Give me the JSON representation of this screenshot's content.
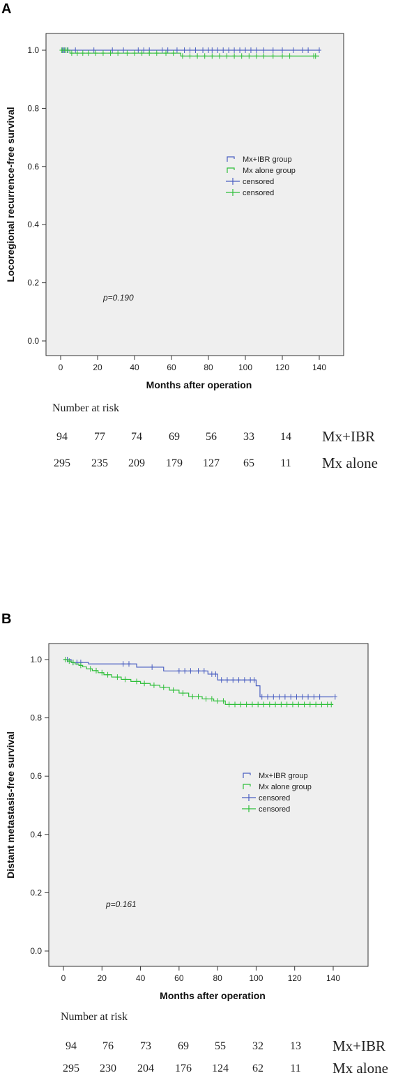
{
  "chart_data": [
    {
      "panel": "A",
      "type": "line",
      "title": "",
      "xlabel": "Months after operation",
      "ylabel": "Locoregional recurrence-free survival",
      "xlim": [
        0,
        140
      ],
      "ylim": [
        0.0,
        1.0
      ],
      "xticks": [
        "0",
        "20",
        "40",
        "60",
        "80",
        "100",
        "120",
        "140"
      ],
      "yticks": [
        "0.0",
        "0.2",
        "0.4",
        "0.6",
        "0.8",
        "1.0"
      ],
      "annotation": "p=0.190",
      "legend_position": "center-right",
      "legend": [
        "Mx+IBR group",
        "Mx alone group",
        "censored",
        "censored"
      ],
      "series": [
        {
          "name": "Mx+IBR group",
          "color": "#4a5fc1",
          "steps": [
            [
              0,
              1.0
            ],
            [
              140,
              1.0
            ]
          ],
          "censored": [
            [
              1,
              1.0
            ],
            [
              2,
              1.0
            ],
            [
              4,
              1.0
            ],
            [
              8,
              1.0
            ],
            [
              18,
              1.0
            ],
            [
              28,
              1.0
            ],
            [
              34,
              1.0
            ],
            [
              42,
              1.0
            ],
            [
              45,
              1.0
            ],
            [
              48,
              1.0
            ],
            [
              55,
              1.0
            ],
            [
              58,
              1.0
            ],
            [
              63,
              1.0
            ],
            [
              67,
              1.0
            ],
            [
              70,
              1.0
            ],
            [
              73,
              1.0
            ],
            [
              77,
              1.0
            ],
            [
              80,
              1.0
            ],
            [
              82,
              1.0
            ],
            [
              85,
              1.0
            ],
            [
              88,
              1.0
            ],
            [
              91,
              1.0
            ],
            [
              94,
              1.0
            ],
            [
              97,
              1.0
            ],
            [
              100,
              1.0
            ],
            [
              103,
              1.0
            ],
            [
              106,
              1.0
            ],
            [
              110,
              1.0
            ],
            [
              115,
              1.0
            ],
            [
              120,
              1.0
            ],
            [
              126,
              1.0
            ],
            [
              131,
              1.0
            ],
            [
              134,
              1.0
            ],
            [
              140,
              1.0
            ]
          ]
        },
        {
          "name": "Mx alone group",
          "color": "#2fbf3a",
          "steps": [
            [
              0,
              1.0
            ],
            [
              5,
              0.99
            ],
            [
              65,
              0.98
            ],
            [
              140,
              0.98
            ]
          ],
          "censored": [
            [
              0.5,
              1.0
            ],
            [
              1.5,
              1.0
            ],
            [
              2.5,
              1.0
            ],
            [
              3.5,
              1.0
            ],
            [
              6,
              0.99
            ],
            [
              9,
              0.99
            ],
            [
              12,
              0.99
            ],
            [
              15,
              0.99
            ],
            [
              19,
              0.99
            ],
            [
              23,
              0.99
            ],
            [
              27,
              0.99
            ],
            [
              31,
              0.99
            ],
            [
              36,
              0.99
            ],
            [
              40,
              0.99
            ],
            [
              44,
              0.99
            ],
            [
              48,
              0.99
            ],
            [
              52,
              0.99
            ],
            [
              57,
              0.99
            ],
            [
              61,
              0.99
            ],
            [
              66,
              0.98
            ],
            [
              70,
              0.98
            ],
            [
              74,
              0.98
            ],
            [
              78,
              0.98
            ],
            [
              82,
              0.98
            ],
            [
              86,
              0.98
            ],
            [
              90,
              0.98
            ],
            [
              94,
              0.98
            ],
            [
              98,
              0.98
            ],
            [
              102,
              0.98
            ],
            [
              106,
              0.98
            ],
            [
              110,
              0.98
            ],
            [
              115,
              0.98
            ],
            [
              120,
              0.98
            ],
            [
              124,
              0.98
            ],
            [
              137,
              0.98
            ],
            [
              138,
              0.98
            ]
          ]
        }
      ],
      "number_at_risk": {
        "title": "Number at risk",
        "rows": [
          {
            "label": "Mx+IBR",
            "values": [
              "94",
              "77",
              "74",
              "69",
              "56",
              "33",
              "14"
            ]
          },
          {
            "label": "Mx alone",
            "values": [
              "295",
              "235",
              "209",
              "179",
              "127",
              "65",
              "11"
            ]
          }
        ]
      }
    },
    {
      "panel": "B",
      "type": "line",
      "title": "",
      "xlabel": "Months after operation",
      "ylabel": "Distant metastasis-free survival",
      "xlim": [
        0,
        140
      ],
      "ylim": [
        0.0,
        1.0
      ],
      "xticks": [
        "0",
        "20",
        "40",
        "60",
        "80",
        "100",
        "120",
        "140"
      ],
      "yticks": [
        "0.0",
        "0.2",
        "0.4",
        "0.6",
        "0.8",
        "1.0"
      ],
      "annotation": "p=0.161",
      "legend_position": "center-right",
      "legend": [
        "Mx+IBR group",
        "Mx alone group",
        "censored",
        "censored"
      ],
      "series": [
        {
          "name": "Mx+IBR group",
          "color": "#4a5fc1",
          "steps": [
            [
              0,
              1.0
            ],
            [
              4,
              0.99
            ],
            [
              13,
              0.985
            ],
            [
              38,
              0.974
            ],
            [
              52,
              0.961
            ],
            [
              75,
              0.95
            ],
            [
              80,
              0.93
            ],
            [
              100,
              0.91
            ],
            [
              102,
              0.872
            ],
            [
              140,
              0.872
            ]
          ],
          "censored": [
            [
              2,
              1.0
            ],
            [
              5,
              0.99
            ],
            [
              7,
              0.99
            ],
            [
              9,
              0.99
            ],
            [
              31,
              0.985
            ],
            [
              34,
              0.985
            ],
            [
              46,
              0.974
            ],
            [
              60,
              0.961
            ],
            [
              63,
              0.961
            ],
            [
              66,
              0.961
            ],
            [
              70,
              0.961
            ],
            [
              73,
              0.961
            ],
            [
              77,
              0.95
            ],
            [
              79,
              0.95
            ],
            [
              82,
              0.93
            ],
            [
              85,
              0.93
            ],
            [
              88,
              0.93
            ],
            [
              91,
              0.93
            ],
            [
              94,
              0.93
            ],
            [
              97,
              0.93
            ],
            [
              99,
              0.93
            ],
            [
              103,
              0.872
            ],
            [
              106,
              0.872
            ],
            [
              109,
              0.872
            ],
            [
              112,
              0.872
            ],
            [
              115,
              0.872
            ],
            [
              118,
              0.872
            ],
            [
              121,
              0.872
            ],
            [
              124,
              0.872
            ],
            [
              127,
              0.872
            ],
            [
              130,
              0.872
            ],
            [
              133,
              0.872
            ],
            [
              141,
              0.872
            ]
          ]
        },
        {
          "name": "Mx alone group",
          "color": "#2fbf3a",
          "steps": [
            [
              0,
              1.0
            ],
            [
              2,
              0.995
            ],
            [
              4,
              0.99
            ],
            [
              6,
              0.985
            ],
            [
              8,
              0.98
            ],
            [
              10,
              0.975
            ],
            [
              12,
              0.968
            ],
            [
              15,
              0.962
            ],
            [
              18,
              0.955
            ],
            [
              21,
              0.948
            ],
            [
              25,
              0.94
            ],
            [
              30,
              0.932
            ],
            [
              35,
              0.925
            ],
            [
              40,
              0.918
            ],
            [
              45,
              0.912
            ],
            [
              50,
              0.905
            ],
            [
              55,
              0.895
            ],
            [
              60,
              0.885
            ],
            [
              65,
              0.873
            ],
            [
              72,
              0.865
            ],
            [
              78,
              0.858
            ],
            [
              84,
              0.846
            ],
            [
              140,
              0.846
            ]
          ],
          "censored": [
            [
              1,
              1.0
            ],
            [
              3,
              0.995
            ],
            [
              5,
              0.99
            ],
            [
              9,
              0.98
            ],
            [
              14,
              0.968
            ],
            [
              17,
              0.962
            ],
            [
              20,
              0.955
            ],
            [
              23,
              0.948
            ],
            [
              28,
              0.94
            ],
            [
              32,
              0.932
            ],
            [
              38,
              0.925
            ],
            [
              42,
              0.918
            ],
            [
              47,
              0.912
            ],
            [
              52,
              0.905
            ],
            [
              57,
              0.895
            ],
            [
              62,
              0.885
            ],
            [
              67,
              0.873
            ],
            [
              70,
              0.873
            ],
            [
              74,
              0.865
            ],
            [
              77,
              0.865
            ],
            [
              80,
              0.858
            ],
            [
              83,
              0.858
            ],
            [
              86,
              0.846
            ],
            [
              89,
              0.846
            ],
            [
              92,
              0.846
            ],
            [
              95,
              0.846
            ],
            [
              98,
              0.846
            ],
            [
              101,
              0.846
            ],
            [
              104,
              0.846
            ],
            [
              107,
              0.846
            ],
            [
              110,
              0.846
            ],
            [
              113,
              0.846
            ],
            [
              116,
              0.846
            ],
            [
              119,
              0.846
            ],
            [
              122,
              0.846
            ],
            [
              125,
              0.846
            ],
            [
              128,
              0.846
            ],
            [
              131,
              0.846
            ],
            [
              134,
              0.846
            ],
            [
              137,
              0.846
            ],
            [
              139,
              0.846
            ]
          ]
        }
      ],
      "number_at_risk": {
        "title": "Number at risk",
        "rows": [
          {
            "label": "Mx+IBR",
            "values": [
              "94",
              "76",
              "73",
              "69",
              "55",
              "32",
              "13"
            ]
          },
          {
            "label": "Mx alone",
            "values": [
              "295",
              "230",
              "204",
              "176",
              "124",
              "62",
              "11"
            ]
          }
        ]
      }
    }
  ],
  "panels": [
    {
      "letter": "A"
    },
    {
      "letter": "B"
    }
  ]
}
